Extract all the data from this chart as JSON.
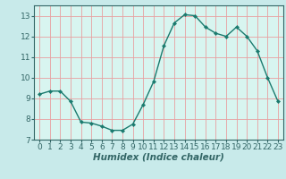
{
  "x": [
    0,
    1,
    2,
    3,
    4,
    5,
    6,
    7,
    8,
    9,
    10,
    11,
    12,
    13,
    14,
    15,
    16,
    17,
    18,
    19,
    20,
    21,
    22,
    23
  ],
  "y": [
    9.2,
    9.35,
    9.35,
    8.85,
    7.85,
    7.8,
    7.65,
    7.45,
    7.45,
    7.75,
    8.7,
    9.8,
    11.55,
    12.65,
    13.05,
    13.0,
    12.45,
    12.15,
    12.0,
    12.45,
    12.0,
    11.3,
    10.0,
    8.85
  ],
  "line_color": "#1a7a6e",
  "marker": "D",
  "marker_size": 2.2,
  "line_width": 1.0,
  "xlabel": "Humidex (Indice chaleur)",
  "xlabel_fontsize": 7.5,
  "xlabel_bold": true,
  "ylim": [
    7,
    13.5
  ],
  "xlim": [
    -0.5,
    23.5
  ],
  "yticks": [
    7,
    8,
    9,
    10,
    11,
    12,
    13
  ],
  "xticks": [
    0,
    1,
    2,
    3,
    4,
    5,
    6,
    7,
    8,
    9,
    10,
    11,
    12,
    13,
    14,
    15,
    16,
    17,
    18,
    19,
    20,
    21,
    22,
    23
  ],
  "bg_color": "#c8eaea",
  "plot_bg_color": "#d8f5f0",
  "grid_color": "#e8a0a0",
  "tick_fontsize": 6.5,
  "spine_color": "#336666"
}
